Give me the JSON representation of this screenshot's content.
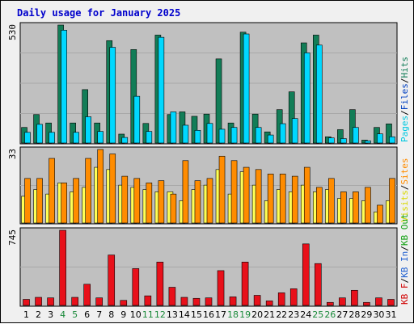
{
  "title": "Daily usage for January 2025",
  "colors": {
    "background": "#f0f0f0",
    "plot_bg": "#c0c0c0",
    "title": "#0000cc",
    "pages": "#127d57",
    "files": "#00d8ff",
    "visits": "#ffff55",
    "sites": "#ff8c00",
    "kb_in": "#e8101a",
    "weekend_tick": "#1a8a3a"
  },
  "panels": [
    {
      "id": "top",
      "ymax_label": "530",
      "legend": [
        {
          "text": "Pages",
          "color": "#00c8e0"
        },
        {
          "text": "/",
          "color": "#000000"
        },
        {
          "text": "Files",
          "color": "#0040c0"
        },
        {
          "text": "/",
          "color": "#000000"
        },
        {
          "text": "Hits",
          "color": "#127d57"
        }
      ]
    },
    {
      "id": "mid",
      "ymax_label": "33",
      "legend": [
        {
          "text": "Visits",
          "color": "#d8d800"
        },
        {
          "text": "/",
          "color": "#000000"
        },
        {
          "text": "Sites",
          "color": "#ff8c00"
        }
      ]
    },
    {
      "id": "bot",
      "ymax_label": "745",
      "legend": [
        {
          "text": "KB F",
          "color": "#d00000"
        },
        {
          "text": "/",
          "color": "#000000"
        },
        {
          "text": "KB In",
          "color": "#2060d0"
        },
        {
          "text": "/",
          "color": "#000000"
        },
        {
          "text": "KB Out",
          "color": "#10a010"
        }
      ]
    }
  ],
  "chart_data": {
    "type": "bar",
    "title": "Daily usage for January 2025",
    "categories": [
      "1",
      "2",
      "3",
      "4",
      "5",
      "6",
      "7",
      "8",
      "9",
      "10",
      "11",
      "12",
      "13",
      "14",
      "15",
      "16",
      "17",
      "18",
      "19",
      "20",
      "21",
      "22",
      "23",
      "24",
      "25",
      "26",
      "27",
      "28",
      "29",
      "30",
      "31"
    ],
    "weekend_days": [
      "4",
      "5",
      "11",
      "12",
      "18",
      "19",
      "25",
      "26"
    ],
    "panels": [
      {
        "ymax": 530,
        "series": [
          {
            "name": "Hits",
            "color": "#127d57",
            "values": [
              70,
              128,
              90,
              530,
              90,
              240,
              90,
              460,
              40,
              420,
              88,
              485,
              128,
              140,
              120,
              130,
              378,
              90,
              498,
              130,
              50,
              150,
              230,
              450,
              485,
              28,
              60,
              150,
              13,
              70,
              86
            ]
          },
          {
            "name": "Files",
            "color": "#00d8ff",
            "values": [
              48,
              84,
              48,
              507,
              48,
              118,
              52,
              430,
              25,
              210,
              52,
              475,
              140,
              80,
              57,
              88,
              62,
              70,
              490,
              70,
              36,
              87,
              110,
              405,
              440,
              23,
              20,
              70,
              10,
              41,
              28
            ]
          }
        ]
      },
      {
        "ymax": 33,
        "series": [
          {
            "name": "Visits",
            "color": "#ffff55",
            "values": [
              12,
              15,
              13,
              18,
              14,
              16,
              25,
              24,
              17,
              16,
              15,
              14,
              14,
              10,
              15,
              17,
              24,
              13,
              23,
              17,
              10,
              15,
              14,
              17,
              14,
              15,
              11,
              11,
              10,
              5,
              10
            ]
          },
          {
            "name": "Sites",
            "color": "#ff8c00",
            "values": [
              20,
              20,
              29,
              18,
              20,
              29,
              33,
              31,
              21,
              20,
              18,
              19,
              13,
              28,
              19,
              20,
              30,
              28,
              25,
              24,
              22,
              22,
              21,
              25,
              16,
              20,
              14,
              14,
              16,
              8,
              20
            ]
          }
        ]
      },
      {
        "ymax": 745,
        "series": [
          {
            "name": "KB F",
            "color": "#e8101a",
            "values": [
              60,
              80,
              75,
              745,
              80,
              210,
              75,
              500,
              50,
              365,
              95,
              430,
              180,
              80,
              70,
              75,
              345,
              85,
              430,
              100,
              45,
              125,
              165,
              610,
              415,
              30,
              75,
              150,
              30,
              75,
              60
            ]
          }
        ]
      }
    ]
  }
}
